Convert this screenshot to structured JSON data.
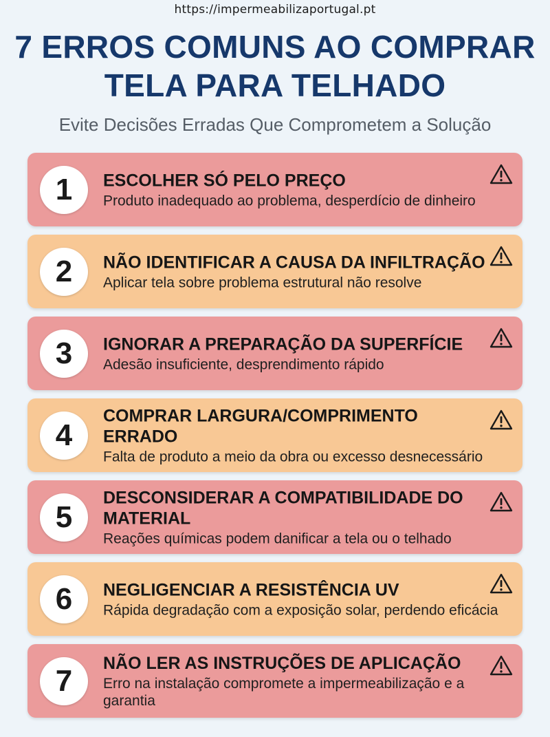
{
  "header": {
    "url": "https://impermeabilizaportugal.pt",
    "title_line1": "7 ERROS COMUNS AO COMPRAR",
    "title_line2": "TELA PARA TELHADO",
    "subtitle": "Evite Decisões Erradas Que Comprometem a Solução"
  },
  "colors": {
    "title": "#16386b",
    "card_red": "#eb9b9b",
    "card_orange": "#f8c895",
    "background": "#eef4f9"
  },
  "items": [
    {
      "number": "1",
      "color": "red",
      "icon": "warning-icon",
      "title": "ESCOLHER SÓ PELO PREÇO",
      "description": "Produto inadequado ao problema, desperdício de dinheiro"
    },
    {
      "number": "2",
      "color": "orange",
      "icon": "warning-icon",
      "title": "NÃO IDENTIFICAR A CAUSA DA INFILTRAÇÃO",
      "description": "Aplicar tela sobre problema estrutural não resolve"
    },
    {
      "number": "3",
      "color": "red",
      "icon": "warning-icon",
      "title": "IGNORAR A PREPARAÇÃO DA SUPERFÍCIE",
      "description": "Adesão insuficiente, desprendimento rápido"
    },
    {
      "number": "4",
      "color": "orange",
      "icon": "warning-icon",
      "title": "COMPRAR LARGURA/COMPRIMENTO ERRADO",
      "description": "Falta de produto a meio da obra ou excesso desnecessário"
    },
    {
      "number": "5",
      "color": "red",
      "icon": "warning-icon",
      "title": "DESCONSIDERAR A COMPATIBILIDADE DO MATERIAL",
      "description": "Reações químicas podem danificar a tela ou o telhado"
    },
    {
      "number": "6",
      "color": "orange",
      "icon": "warning-icon",
      "title": "NEGLIGENCIAR A RESISTÊNCIA UV",
      "description": "Rápida degradação com a exposição solar, perdendo eficácia"
    },
    {
      "number": "7",
      "color": "red",
      "icon": "warning-icon",
      "title": "NÃO LER AS INSTRUÇÕES DE APLICAÇÃO",
      "description": "Erro na instalação compromete a impermeabilização e a garantia"
    }
  ]
}
